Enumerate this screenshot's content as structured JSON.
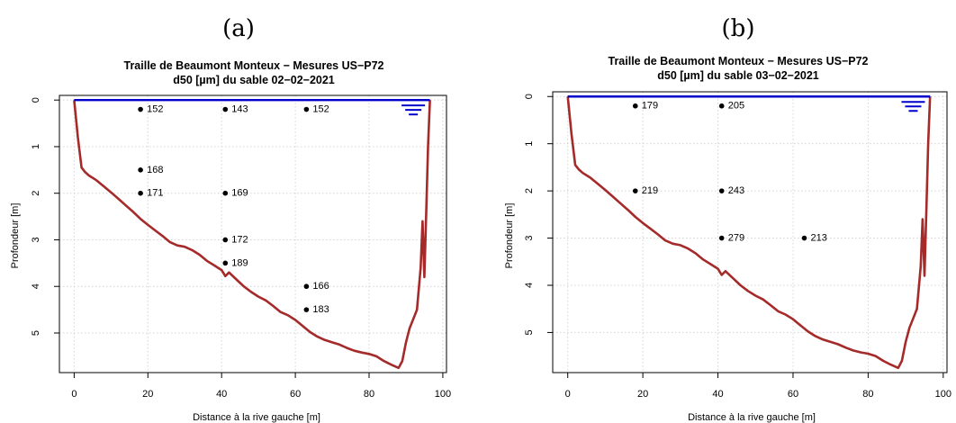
{
  "chart_data": [
    {
      "panel": "(a)",
      "type": "scatter",
      "title": "Traille de Beaumont Monteux − Mesures US−P72",
      "subtitle": "d50 [µm] du sable 02−02−2021",
      "xlabel": "Distance à la rive gauche [m]",
      "ylabel": "Profondeur [m]",
      "xlim": [
        -4,
        101
      ],
      "ylim": [
        5.85,
        -0.1
      ],
      "xticks": [
        "0",
        "20",
        "40",
        "60",
        "80",
        "100"
      ],
      "yticks": [
        "0",
        "1",
        "2",
        "3",
        "4",
        "5"
      ],
      "y_reversed": true,
      "grid": true,
      "water_surface_depth": 0,
      "water_surface_x": [
        0,
        96.5
      ],
      "bed_profile": {
        "x": [
          0,
          1,
          2,
          3,
          4,
          6,
          8,
          10,
          12,
          14,
          16,
          18,
          20,
          22,
          24,
          26,
          28,
          30,
          32,
          34,
          36,
          38,
          40,
          41,
          42,
          44,
          46,
          48,
          50,
          52,
          54,
          56,
          58,
          60,
          62,
          64,
          66,
          68,
          70,
          72,
          74,
          76,
          78,
          80,
          82,
          84,
          86,
          88,
          89,
          90,
          91,
          92,
          93,
          94,
          94.5,
          95,
          95.5,
          96,
          96.5
        ],
        "y": [
          0,
          0.8,
          1.45,
          1.55,
          1.62,
          1.72,
          1.85,
          1.98,
          2.12,
          2.26,
          2.4,
          2.55,
          2.68,
          2.8,
          2.92,
          3.05,
          3.12,
          3.15,
          3.22,
          3.32,
          3.45,
          3.55,
          3.65,
          3.78,
          3.7,
          3.85,
          4.0,
          4.12,
          4.22,
          4.3,
          4.42,
          4.55,
          4.62,
          4.72,
          4.85,
          4.98,
          5.08,
          5.15,
          5.2,
          5.25,
          5.32,
          5.38,
          5.42,
          5.45,
          5.5,
          5.6,
          5.68,
          5.75,
          5.6,
          5.2,
          4.9,
          4.7,
          4.5,
          3.6,
          2.6,
          3.8,
          2.4,
          1.0,
          0
        ]
      },
      "points": [
        {
          "x": 18,
          "y": 0.2,
          "value": "152"
        },
        {
          "x": 41,
          "y": 0.2,
          "value": "143"
        },
        {
          "x": 63,
          "y": 0.2,
          "value": "152"
        },
        {
          "x": 18,
          "y": 1.5,
          "value": "168"
        },
        {
          "x": 18,
          "y": 2.0,
          "value": "171"
        },
        {
          "x": 41,
          "y": 2.0,
          "value": "169"
        },
        {
          "x": 41,
          "y": 3.0,
          "value": "172"
        },
        {
          "x": 41,
          "y": 3.5,
          "value": "189"
        },
        {
          "x": 63,
          "y": 4.0,
          "value": "166"
        },
        {
          "x": 63,
          "y": 4.5,
          "value": "183"
        }
      ],
      "colors": {
        "profile": "#a52a2a",
        "surface": "#0000cd"
      }
    },
    {
      "panel": "(b)",
      "type": "scatter",
      "title": "Traille de Beaumont Monteux − Mesures US−P72",
      "subtitle": "d50 [µm] du sable 03−02−2021",
      "xlabel": "Distance à la rive gauche [m]",
      "ylabel": "Profondeur [m]",
      "xlim": [
        -4,
        101
      ],
      "ylim": [
        5.85,
        -0.1
      ],
      "xticks": [
        "0",
        "20",
        "40",
        "60",
        "80",
        "100"
      ],
      "yticks": [
        "0",
        "1",
        "2",
        "3",
        "4",
        "5"
      ],
      "y_reversed": true,
      "grid": true,
      "water_surface_depth": 0,
      "water_surface_x": [
        0,
        96.5
      ],
      "bed_profile": {
        "x": [
          0,
          1,
          2,
          3,
          4,
          6,
          8,
          10,
          12,
          14,
          16,
          18,
          20,
          22,
          24,
          26,
          28,
          30,
          32,
          34,
          36,
          38,
          40,
          41,
          42,
          44,
          46,
          48,
          50,
          52,
          54,
          56,
          58,
          60,
          62,
          64,
          66,
          68,
          70,
          72,
          74,
          76,
          78,
          80,
          82,
          84,
          86,
          88,
          89,
          90,
          91,
          92,
          93,
          94,
          94.5,
          95,
          95.5,
          96,
          96.5
        ],
        "y": [
          0,
          0.8,
          1.45,
          1.55,
          1.62,
          1.72,
          1.85,
          1.98,
          2.12,
          2.26,
          2.4,
          2.55,
          2.68,
          2.8,
          2.92,
          3.05,
          3.12,
          3.15,
          3.22,
          3.32,
          3.45,
          3.55,
          3.65,
          3.78,
          3.7,
          3.85,
          4.0,
          4.12,
          4.22,
          4.3,
          4.42,
          4.55,
          4.62,
          4.72,
          4.85,
          4.98,
          5.08,
          5.15,
          5.2,
          5.25,
          5.32,
          5.38,
          5.42,
          5.45,
          5.5,
          5.6,
          5.68,
          5.75,
          5.6,
          5.2,
          4.9,
          4.7,
          4.5,
          3.6,
          2.6,
          3.8,
          2.4,
          1.0,
          0
        ]
      },
      "points": [
        {
          "x": 18,
          "y": 0.2,
          "value": "179"
        },
        {
          "x": 41,
          "y": 0.2,
          "value": "205"
        },
        {
          "x": 18,
          "y": 2.0,
          "value": "219"
        },
        {
          "x": 41,
          "y": 2.0,
          "value": "243"
        },
        {
          "x": 41,
          "y": 3.0,
          "value": "279"
        },
        {
          "x": 63,
          "y": 3.0,
          "value": "213"
        }
      ],
      "colors": {
        "profile": "#a52a2a",
        "surface": "#0000cd"
      }
    }
  ]
}
